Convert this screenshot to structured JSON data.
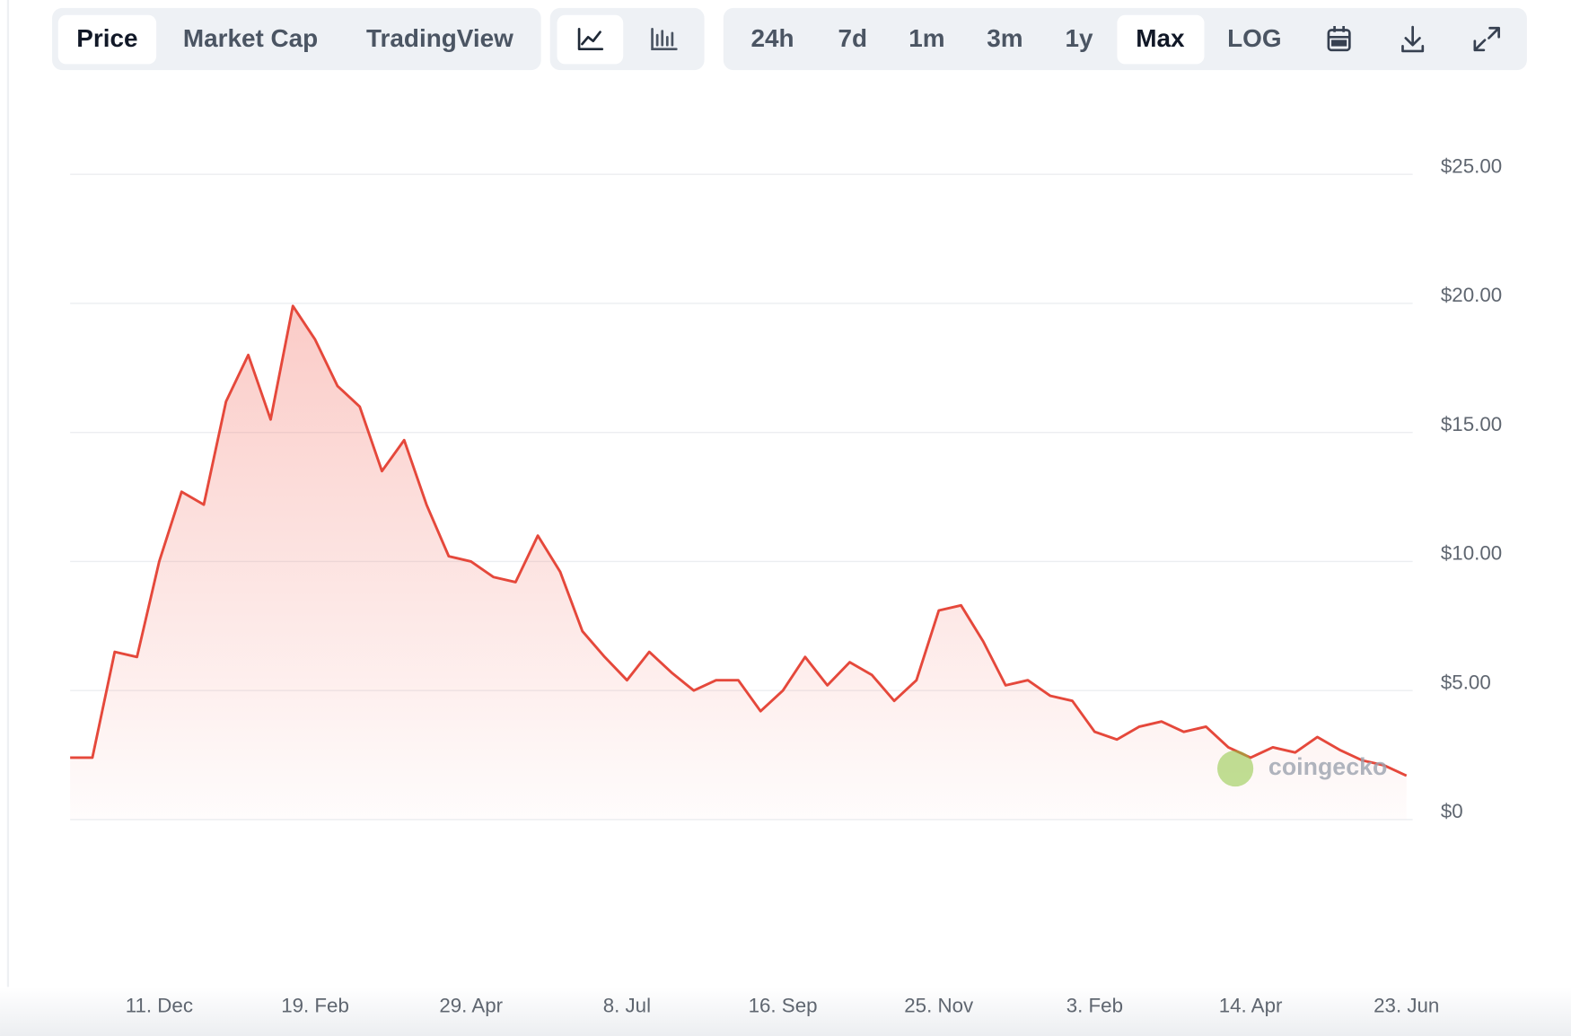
{
  "toolbar": {
    "tabs": [
      "Price",
      "Market Cap",
      "TradingView"
    ],
    "ranges": [
      "24h",
      "7d",
      "1m",
      "3m",
      "1y",
      "Max",
      "LOG"
    ]
  },
  "chart_data": {
    "type": "area",
    "color": "#e5483b",
    "watermark": "coingecko",
    "grid": true,
    "categories": [
      null,
      null,
      null,
      null,
      "11. Dec",
      null,
      null,
      null,
      null,
      null,
      null,
      "19. Feb",
      null,
      null,
      null,
      null,
      null,
      null,
      "29. Apr",
      null,
      null,
      null,
      null,
      null,
      null,
      "8. Jul",
      null,
      null,
      null,
      null,
      null,
      null,
      "16. Sep",
      null,
      null,
      null,
      null,
      null,
      null,
      "25. Nov",
      null,
      null,
      null,
      null,
      null,
      null,
      "3. Feb",
      null,
      null,
      null,
      null,
      null,
      null,
      "14. Apr",
      null,
      null,
      null,
      null,
      null,
      null,
      "23. Jun"
    ],
    "values": [
      2.4,
      2.4,
      6.5,
      6.3,
      10.0,
      12.7,
      12.2,
      16.2,
      18.0,
      15.5,
      19.9,
      18.6,
      16.8,
      16.0,
      13.5,
      14.7,
      12.2,
      10.2,
      10.0,
      9.4,
      9.2,
      11.0,
      9.6,
      7.3,
      6.3,
      5.4,
      6.5,
      5.7,
      5.0,
      5.4,
      5.4,
      4.2,
      5.0,
      6.3,
      5.2,
      6.1,
      5.6,
      4.6,
      5.4,
      8.1,
      8.3,
      6.9,
      5.2,
      5.4,
      4.8,
      4.6,
      3.4,
      3.1,
      3.6,
      3.8,
      3.4,
      3.6,
      2.8,
      2.4,
      2.8,
      2.6,
      3.2,
      2.7,
      2.3,
      2.1,
      1.7
    ],
    "ylim": [
      0,
      25
    ],
    "yticks": [
      {
        "value": 0,
        "label": "$0"
      },
      {
        "value": 5,
        "label": "$5.00"
      },
      {
        "value": 10,
        "label": "$10.00"
      },
      {
        "value": 15,
        "label": "$15.00"
      },
      {
        "value": 20,
        "label": "$20.00"
      },
      {
        "value": 25,
        "label": "$25.00"
      }
    ]
  }
}
